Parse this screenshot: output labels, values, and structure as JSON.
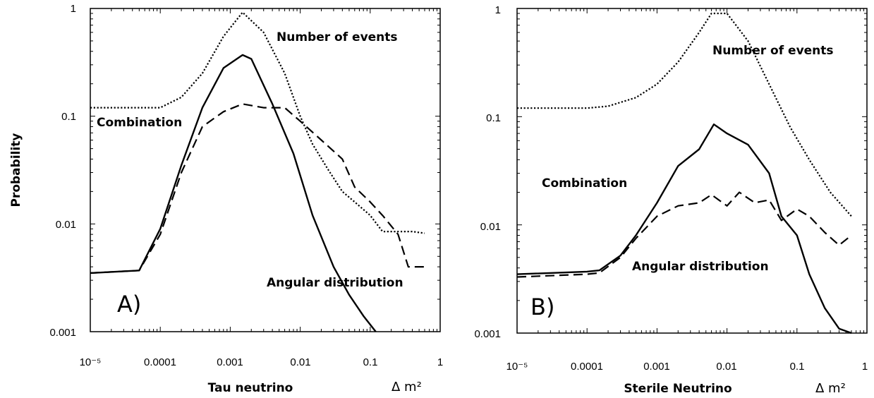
{
  "chart_data": [
    {
      "type": "line",
      "panel_label": "A)",
      "xlabel": "Tau neutrino",
      "x_unit_label": "Δ m²",
      "ylabel": "Probability",
      "xscale": "log",
      "yscale": "log",
      "xlim": [
        1e-05,
        1
      ],
      "ylim": [
        0.001,
        1
      ],
      "x_tick_labels": [
        "10⁻⁵",
        "0.0001",
        "0.001",
        "0.01",
        "0.1",
        "1"
      ],
      "y_tick_labels": [
        "1",
        "0.1",
        "0.01",
        "0.001"
      ],
      "annotations": [
        "Number of events",
        "Combination",
        "Angular distribution"
      ],
      "series": [
        {
          "name": "Number of events",
          "line_style": "dotted",
          "x": [
            1e-05,
            0.0001,
            0.0002,
            0.0004,
            0.0008,
            0.0015,
            0.003,
            0.006,
            0.01,
            0.015,
            0.025,
            0.04,
            0.06,
            0.1,
            0.15,
            0.25,
            0.4,
            0.6
          ],
          "y": [
            0.12,
            0.12,
            0.15,
            0.25,
            0.55,
            0.92,
            0.6,
            0.25,
            0.1,
            0.055,
            0.032,
            0.02,
            0.016,
            0.012,
            0.0085,
            0.0085,
            0.0085,
            0.0082
          ]
        },
        {
          "name": "Combination",
          "line_style": "solid",
          "x": [
            1e-05,
            5e-05,
            0.0001,
            0.0002,
            0.0004,
            0.0008,
            0.0015,
            0.002,
            0.004,
            0.008,
            0.015,
            0.03,
            0.05,
            0.08,
            0.12
          ],
          "y": [
            0.0035,
            0.0037,
            0.009,
            0.035,
            0.12,
            0.28,
            0.37,
            0.34,
            0.13,
            0.045,
            0.012,
            0.004,
            0.0022,
            0.0014,
            0.001
          ]
        },
        {
          "name": "Angular distribution",
          "line_style": "dashed",
          "x": [
            1e-05,
            5e-05,
            0.0001,
            0.0002,
            0.0004,
            0.0008,
            0.0015,
            0.003,
            0.006,
            0.01,
            0.02,
            0.04,
            0.06,
            0.1,
            0.15,
            0.25,
            0.35,
            0.6
          ],
          "y": [
            0.0035,
            0.0037,
            0.008,
            0.03,
            0.08,
            0.11,
            0.13,
            0.12,
            0.12,
            0.09,
            0.06,
            0.04,
            0.022,
            0.016,
            0.012,
            0.008,
            0.004,
            0.004
          ]
        }
      ]
    },
    {
      "type": "line",
      "panel_label": "B)",
      "xlabel": "Sterile Neutrino",
      "x_unit_label": "Δ m²",
      "ylabel": "",
      "xscale": "log",
      "yscale": "log",
      "xlim": [
        1e-05,
        1
      ],
      "ylim": [
        0.001,
        1
      ],
      "x_tick_labels": [
        "10⁻⁵",
        "0.0001",
        "0.001",
        "0.01",
        "0.1",
        "1"
      ],
      "y_tick_labels": [
        "1",
        "0.1",
        "0.01",
        "0.001"
      ],
      "annotations": [
        "Number of events",
        "Combination",
        "Angular distribution"
      ],
      "series": [
        {
          "name": "Number of events",
          "line_style": "dotted",
          "x": [
            1e-05,
            0.0001,
            0.0002,
            0.0005,
            0.001,
            0.002,
            0.004,
            0.006,
            0.01,
            0.02,
            0.04,
            0.08,
            0.15,
            0.3,
            0.6
          ],
          "y": [
            0.12,
            0.12,
            0.125,
            0.15,
            0.2,
            0.32,
            0.6,
            0.9,
            0.9,
            0.5,
            0.2,
            0.08,
            0.04,
            0.02,
            0.012
          ]
        },
        {
          "name": "Combination",
          "line_style": "solid",
          "x": [
            1e-05,
            0.0001,
            0.00015,
            0.0003,
            0.0005,
            0.001,
            0.002,
            0.004,
            0.0065,
            0.01,
            0.02,
            0.04,
            0.06,
            0.1,
            0.15,
            0.25,
            0.4,
            0.6
          ],
          "y": [
            0.0035,
            0.0037,
            0.0038,
            0.0052,
            0.008,
            0.016,
            0.035,
            0.05,
            0.085,
            0.07,
            0.055,
            0.03,
            0.012,
            0.008,
            0.0035,
            0.0017,
            0.0011,
            0.001
          ]
        },
        {
          "name": "Angular distribution",
          "line_style": "dashed",
          "x": [
            1e-05,
            0.0001,
            0.00015,
            0.0003,
            0.0005,
            0.001,
            0.002,
            0.004,
            0.006,
            0.01,
            0.015,
            0.025,
            0.04,
            0.06,
            0.1,
            0.15,
            0.25,
            0.4,
            0.6
          ],
          "y": [
            0.0033,
            0.0035,
            0.0036,
            0.005,
            0.0075,
            0.012,
            0.015,
            0.016,
            0.019,
            0.015,
            0.02,
            0.016,
            0.017,
            0.011,
            0.014,
            0.012,
            0.0085,
            0.0065,
            0.008
          ]
        }
      ]
    }
  ]
}
